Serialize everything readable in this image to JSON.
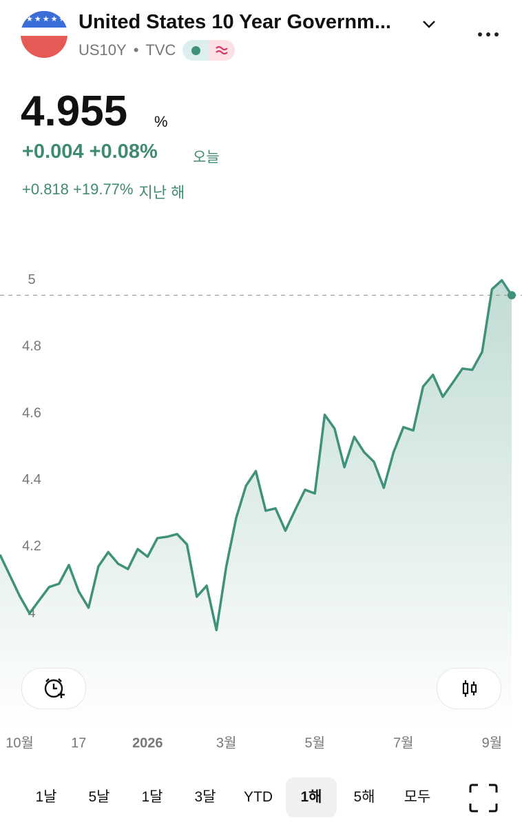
{
  "header": {
    "title": "United States 10 Year Governm...",
    "symbol": "US10Y",
    "separator": "•",
    "exchange": "TVC"
  },
  "quote": {
    "price": "4.955",
    "unit": "%",
    "change_today": "+0.004 +0.08%",
    "today_label": "오늘",
    "change_year": "+0.818 +19.77%",
    "year_label": "지난 해"
  },
  "chart_data": {
    "type": "line",
    "color": "#3f917a",
    "x": [
      0,
      1,
      2,
      3,
      4,
      5,
      6,
      7,
      8,
      9,
      10,
      11,
      12,
      13,
      14,
      15,
      16,
      17,
      18,
      19,
      20,
      21,
      22,
      23,
      24,
      25,
      26,
      27,
      28,
      29,
      30,
      31,
      32,
      33,
      34,
      35,
      36,
      37,
      38,
      39,
      40,
      41,
      42,
      43,
      44,
      45,
      46,
      47,
      48,
      49,
      50,
      51,
      52
    ],
    "values": [
      4.176,
      4.114,
      4.052,
      4.0,
      4.04,
      4.079,
      4.089,
      4.145,
      4.066,
      4.017,
      4.141,
      4.184,
      4.149,
      4.133,
      4.193,
      4.17,
      4.226,
      4.23,
      4.238,
      4.207,
      4.05,
      4.083,
      3.95,
      4.141,
      4.286,
      4.383,
      4.427,
      4.308,
      4.315,
      4.248,
      4.311,
      4.371,
      4.36,
      4.596,
      4.555,
      4.439,
      4.53,
      4.484,
      4.455,
      4.377,
      4.484,
      4.559,
      4.549,
      4.681,
      4.716,
      4.65,
      4.692,
      4.735,
      4.731,
      4.785,
      4.973,
      5.0,
      4.955
    ],
    "xlim": [
      0,
      52
    ],
    "xticks": [
      {
        "value": 2,
        "label": "10월"
      },
      {
        "value": 8,
        "label": "17"
      },
      {
        "value": 15,
        "label": "2026"
      },
      {
        "value": 23,
        "label": "3월"
      },
      {
        "value": 32,
        "label": "5월"
      },
      {
        "value": 41,
        "label": "7월"
      },
      {
        "value": 50,
        "label": "9월"
      }
    ],
    "ylim": [
      3.7,
      5.2
    ],
    "yticks": [
      4,
      4.2,
      4.4,
      4.6,
      4.8,
      5
    ],
    "grid": false
  },
  "range_tabs": {
    "options": [
      "1날",
      "5날",
      "1달",
      "3달",
      "YTD",
      "1해",
      "5해",
      "모두"
    ],
    "selected_index": 5
  }
}
